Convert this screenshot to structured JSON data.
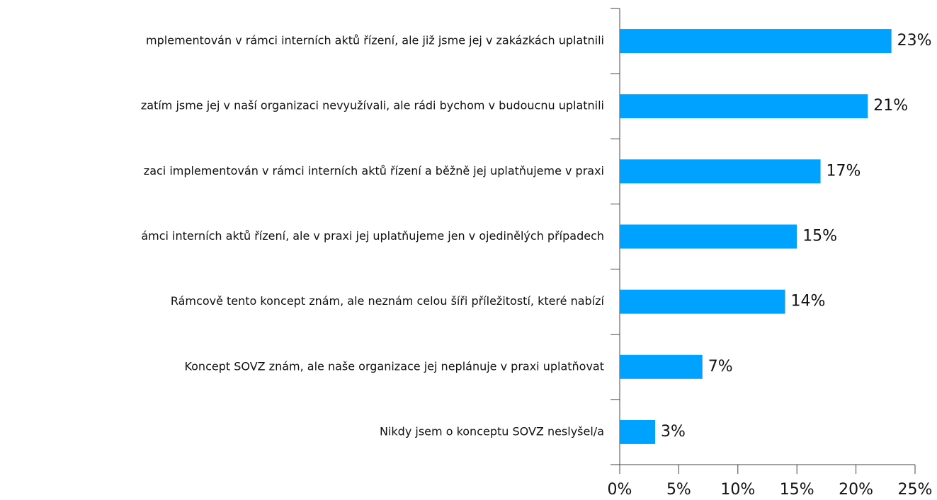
{
  "chart_data": {
    "type": "barh",
    "categories": [
      "mplementován v rámci interních aktů řízení, ale  již jsme jej v zakázkách uplatnili",
      "zatím jsme jej v naší organizaci nevyužívali, ale rádi bychom v budoucnu uplatnili",
      "zaci implementován v rámci interních aktů řízení a běžně jej uplatňujeme v praxi",
      "ámci interních aktů řízení, ale v praxi jej uplatňujeme jen v ojedinělých případech",
      "Rámcově tento koncept znám, ale neznám celou šíři příležitostí, které nabízí",
      "Koncept SOVZ znám, ale naše organizace jej neplánuje v praxi uplatňovat",
      "Nikdy jsem o konceptu SOVZ neslyšel/a"
    ],
    "values": [
      23,
      21,
      17,
      15,
      14,
      7,
      3
    ],
    "value_labels": [
      "23%",
      "21%",
      "17%",
      "15%",
      "14%",
      "7%",
      "3%"
    ],
    "color": "#00a2ff",
    "xlim": [
      0,
      25
    ],
    "xticks": [
      {
        "value": 0,
        "label": "0%"
      },
      {
        "value": 5,
        "label": "5%"
      },
      {
        "value": 10,
        "label": "10%"
      },
      {
        "value": 15,
        "label": "15%"
      },
      {
        "value": 20,
        "label": "20%"
      },
      {
        "value": 25,
        "label": "25%"
      }
    ]
  }
}
